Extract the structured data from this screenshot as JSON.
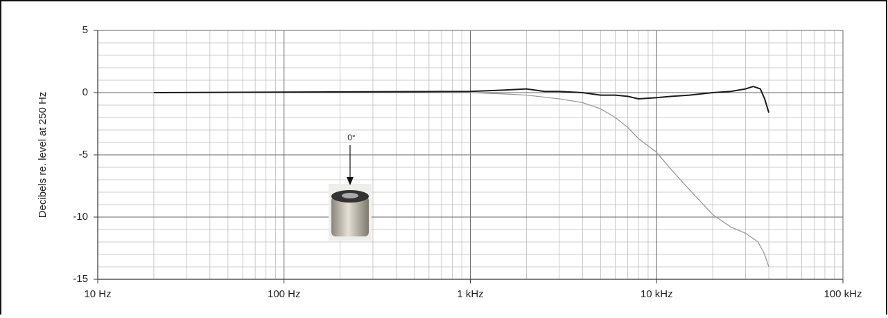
{
  "chart_data": {
    "type": "line",
    "y_label": "Decibels re. level at 250 Hz",
    "annotation": "0°",
    "xscale": "log",
    "xlim": [
      10,
      100000
    ],
    "xticks": [
      {
        "value": 10,
        "label": "10 Hz"
      },
      {
        "value": 100,
        "label": "100 Hz"
      },
      {
        "value": 1000,
        "label": "1 kHz"
      },
      {
        "value": 10000,
        "label": "10 kHz"
      },
      {
        "value": 100000,
        "label": "100 kHz"
      }
    ],
    "ylim": [
      -15,
      5
    ],
    "yticks": [
      5,
      0,
      -5,
      -10,
      -15
    ],
    "grid": true,
    "series": [
      {
        "color": "#1a1a1a",
        "x": [
          20,
          1000,
          1500,
          2000,
          2500,
          3000,
          4000,
          5000,
          6000,
          7000,
          8000,
          10000,
          12000,
          15000,
          20000,
          25000,
          30000,
          33000,
          36000,
          38000,
          40000
        ],
        "values": [
          0,
          0.1,
          0.2,
          0.3,
          0.1,
          0.1,
          0,
          -0.2,
          -0.2,
          -0.3,
          -0.5,
          -0.4,
          -0.3,
          -0.2,
          0,
          0.1,
          0.3,
          0.5,
          0.3,
          -0.5,
          -1.6
        ]
      },
      {
        "color": "#999999",
        "x": [
          1000,
          1500,
          2000,
          3000,
          4000,
          5000,
          6000,
          7000,
          8000,
          10000,
          12000,
          15000,
          20000,
          25000,
          30000,
          35000,
          38000,
          40000
        ],
        "values": [
          0,
          -0.1,
          -0.2,
          -0.5,
          -0.8,
          -1.3,
          -2,
          -2.8,
          -3.7,
          -4.8,
          -6.2,
          -7.8,
          -9.8,
          -10.8,
          -11.3,
          -12,
          -13,
          -14
        ]
      }
    ]
  }
}
